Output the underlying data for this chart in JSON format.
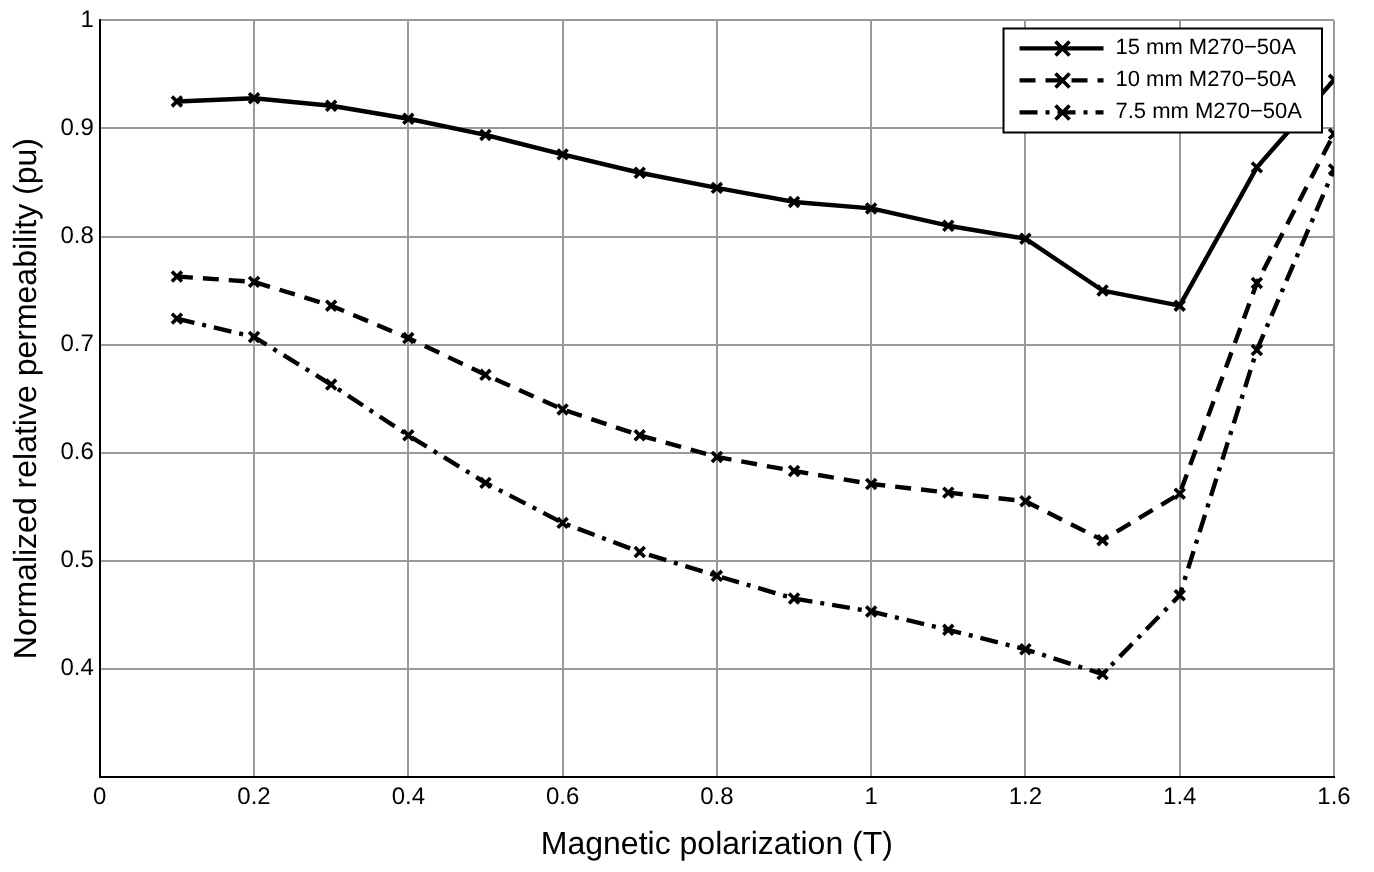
{
  "chart_data": {
    "type": "line",
    "xlabel": "Magnetic polarization (T)",
    "ylabel": "Normalized relative permeability (pu)",
    "x": [
      0.1,
      0.2,
      0.3,
      0.4,
      0.5,
      0.6,
      0.7,
      0.8,
      0.9,
      1.0,
      1.1,
      1.2,
      1.3,
      1.4,
      1.5,
      1.6
    ],
    "series": [
      {
        "name": "15 mm M270−50A",
        "color": "#000000",
        "line_style": "solid",
        "values": [
          0.925,
          0.928,
          0.921,
          0.909,
          0.894,
          0.876,
          0.859,
          0.845,
          0.832,
          0.826,
          0.81,
          0.798,
          0.75,
          0.736,
          0.864,
          0.945
        ]
      },
      {
        "name": "10 mm M270−50A",
        "color": "#000000",
        "line_style": "dashed",
        "values": [
          0.763,
          0.758,
          0.736,
          0.706,
          0.672,
          0.64,
          0.616,
          0.596,
          0.583,
          0.571,
          0.563,
          0.555,
          0.519,
          0.562,
          0.757,
          0.895
        ]
      },
      {
        "name": "7.5 mm M270−50A",
        "color": "#000000",
        "line_style": "dashdot",
        "values": [
          0.724,
          0.707,
          0.663,
          0.616,
          0.572,
          0.535,
          0.508,
          0.486,
          0.465,
          0.453,
          0.436,
          0.418,
          0.395,
          0.468,
          0.695,
          0.862
        ]
      }
    ],
    "xlim": [
      0,
      1.6
    ],
    "xticks": [
      0,
      0.2,
      0.4,
      0.6,
      0.8,
      1,
      1.2,
      1.4,
      1.6
    ],
    "ylim": [
      0.3,
      1
    ],
    "yticks": [
      0.4,
      0.5,
      0.6,
      0.7,
      0.8,
      0.9,
      1
    ],
    "grid": true,
    "legend": "top right",
    "marker": "cross"
  }
}
